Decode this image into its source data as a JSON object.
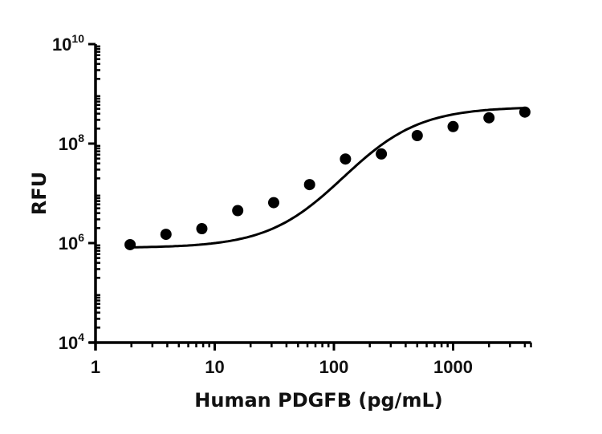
{
  "chart_data": {
    "type": "scatter",
    "title": "",
    "xlabel": "Human PDGFB (pg/mL)",
    "ylabel": "RFU",
    "xscale": "log",
    "yscale": "log",
    "xlim": [
      1,
      4500
    ],
    "ylim": [
      10000,
      10000000000
    ],
    "x_ticks": [
      1,
      10,
      100,
      1000
    ],
    "x_tick_labels": [
      "1",
      "10",
      "100",
      "1000"
    ],
    "y_ticks": [
      10000,
      1000000,
      100000000,
      10000000000
    ],
    "y_tick_labels": [
      {
        "base": "10",
        "exp": "4"
      },
      {
        "base": "10",
        "exp": "6"
      },
      {
        "base": "10",
        "exp": "8"
      },
      {
        "base": "10",
        "exp": "10"
      }
    ],
    "grid": false,
    "legend": null,
    "series": [
      {
        "name": "Human PDGFB",
        "marker": "circle",
        "color": "#000000",
        "fit": "4PL curve",
        "x": [
          1.95,
          3.9,
          7.8,
          15.6,
          31.25,
          62.5,
          125,
          250,
          500,
          1000,
          2000,
          4000
        ],
        "values": [
          930000,
          1500000,
          1950000,
          4500000,
          6500000,
          15000000,
          49000000,
          62000000,
          145000000,
          220000000,
          330000000,
          430000000
        ]
      }
    ]
  }
}
